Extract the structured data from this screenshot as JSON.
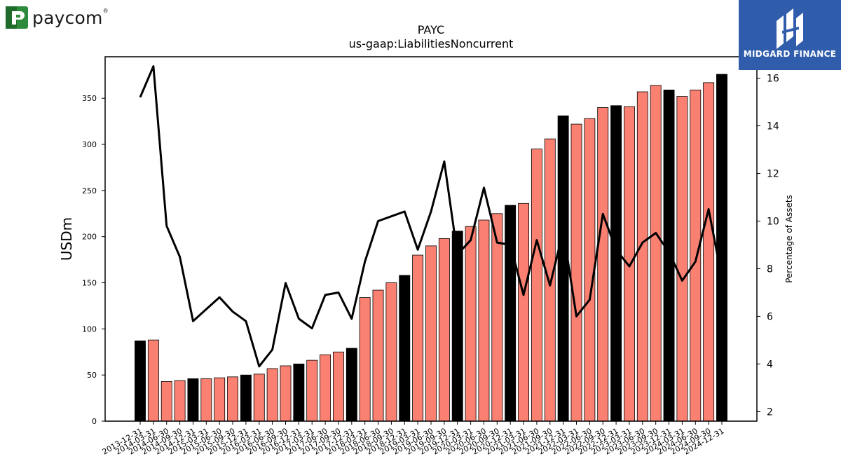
{
  "branding": {
    "left_logo_text": "paycom",
    "left_logo_reg": "®",
    "right_logo_text": "MIDGARD FINANCE",
    "right_logo_bg": "#2f5dab"
  },
  "chart_data": {
    "type": "bar",
    "title": "PAYC",
    "subtitle": "us-gaap:LiabilitiesNoncurrent",
    "ylabel": "USDm",
    "y2label": "Percentage of Assets",
    "ylim": [
      0,
      395
    ],
    "y2lim": [
      1.6,
      16.9
    ],
    "yticks": [
      0,
      50,
      100,
      150,
      200,
      250,
      300,
      350
    ],
    "y2ticks": [
      2,
      4,
      6,
      8,
      10,
      12,
      14,
      16
    ],
    "colors": {
      "quarter": "#fa8072",
      "year_end": "#000000",
      "line": "#000000"
    },
    "categories": [
      "2013-12-31",
      "2014-03-31",
      "2014-06-30",
      "2014-09-30",
      "2014-12-31",
      "2015-03-31",
      "2015-06-30",
      "2015-09-30",
      "2015-12-31",
      "2016-03-31",
      "2016-06-30",
      "2016-09-30",
      "2016-12-31",
      "2017-03-31",
      "2017-06-30",
      "2017-09-30",
      "2017-12-31",
      "2018-03-31",
      "2018-06-30",
      "2018-09-30",
      "2018-12-31",
      "2019-03-31",
      "2019-06-30",
      "2019-09-30",
      "2019-12-31",
      "2020-03-31",
      "2020-06-30",
      "2020-09-30",
      "2020-12-31",
      "2021-03-31",
      "2021-06-30",
      "2021-09-30",
      "2021-12-31",
      "2022-03-31",
      "2022-06-30",
      "2022-09-30",
      "2022-12-31",
      "2023-03-31",
      "2023-06-30",
      "2023-09-30",
      "2023-12-31",
      "2024-03-31",
      "2024-06-30",
      "2024-09-30",
      "2024-12-31"
    ],
    "series": [
      {
        "type": "bar",
        "values": [
          87,
          88,
          43,
          44,
          46,
          46,
          47,
          48,
          50,
          51,
          57,
          60,
          62,
          66,
          72,
          75,
          79,
          134,
          142,
          150,
          158,
          180,
          190,
          198,
          206,
          211,
          218,
          225,
          234,
          236,
          295,
          306,
          331,
          322,
          328,
          340,
          342,
          341,
          357,
          364,
          359,
          352,
          359,
          367,
          376
        ]
      },
      {
        "type": "line",
        "axis": "right",
        "values": [
          15.2,
          16.5,
          9.8,
          8.5,
          5.8,
          6.3,
          6.8,
          6.2,
          5.8,
          3.9,
          4.6,
          7.4,
          5.9,
          5.5,
          6.9,
          7.0,
          5.9,
          8.3,
          10.0,
          10.2,
          10.4,
          8.8,
          10.4,
          12.5,
          8.6,
          9.2,
          11.4,
          9.1,
          9.0,
          6.9,
          9.2,
          7.3,
          9.6,
          6.0,
          6.7,
          10.3,
          8.8,
          8.1,
          9.1,
          9.5,
          8.7,
          7.5,
          8.3,
          10.5,
          7.6
        ]
      }
    ],
    "grid": false
  }
}
